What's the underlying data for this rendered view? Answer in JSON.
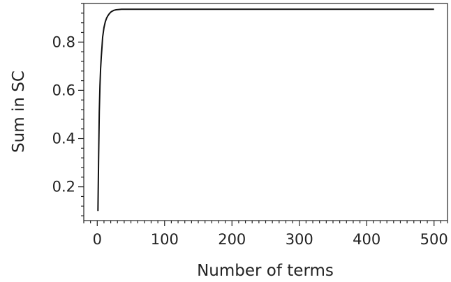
{
  "chart_data": {
    "type": "line",
    "title": "",
    "xlabel": "Number of terms",
    "ylabel": "Sum in SC",
    "xlim": [
      -20,
      520
    ],
    "ylim": [
      0.06,
      0.96
    ],
    "x_ticks": [
      0,
      100,
      200,
      300,
      400,
      500
    ],
    "y_ticks": [
      0.2,
      0.4,
      0.6,
      0.8
    ],
    "x_tick_labels": [
      "0",
      "100",
      "200",
      "300",
      "400",
      "500"
    ],
    "y_tick_labels": [
      "0.2",
      "0.4",
      "0.6",
      "0.8"
    ],
    "x_minor_step": 10,
    "y_minor_step": 0.04,
    "grid": false,
    "legend": "none",
    "series": [
      {
        "color": "#111111",
        "x": [
          1,
          2,
          3,
          4,
          5,
          6,
          7,
          8,
          10,
          12,
          14,
          16,
          18,
          20,
          22,
          25,
          28,
          32,
          36,
          40,
          50,
          60,
          80,
          100,
          150,
          200,
          300,
          400,
          500
        ],
        "y": [
          0.1,
          0.31,
          0.51,
          0.62,
          0.69,
          0.74,
          0.78,
          0.82,
          0.86,
          0.885,
          0.9,
          0.91,
          0.918,
          0.924,
          0.928,
          0.932,
          0.934,
          0.935,
          0.936,
          0.936,
          0.936,
          0.936,
          0.936,
          0.936,
          0.936,
          0.936,
          0.936,
          0.936,
          0.936
        ]
      }
    ]
  }
}
